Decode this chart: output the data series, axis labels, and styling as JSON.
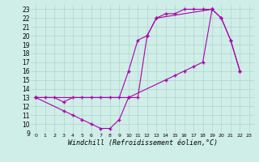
{
  "xlabel": "Windchill (Refroidissement éolien,°C)",
  "bg_color": "#d0eee8",
  "grid_color": "#b0d4cc",
  "line_color": "#aa00aa",
  "xlim": [
    -0.5,
    23.5
  ],
  "ylim": [
    9,
    23.5
  ],
  "xticks": [
    0,
    1,
    2,
    3,
    4,
    5,
    6,
    7,
    8,
    9,
    10,
    11,
    12,
    13,
    14,
    15,
    16,
    17,
    18,
    19,
    20,
    21,
    22,
    23
  ],
  "yticks": [
    9,
    10,
    11,
    12,
    13,
    14,
    15,
    16,
    17,
    18,
    19,
    20,
    21,
    22,
    23
  ],
  "curve1_x": [
    0,
    1,
    2,
    3,
    4,
    5,
    6,
    7,
    8,
    9,
    10,
    11,
    12,
    13,
    14,
    15,
    16,
    17,
    18,
    19
  ],
  "curve1_y": [
    13,
    13,
    13,
    12.5,
    13,
    13,
    13,
    13,
    13,
    13,
    16,
    19.5,
    20,
    22,
    22.5,
    22.5,
    23,
    23,
    23,
    23
  ],
  "curve2_x": [
    0,
    3,
    4,
    5,
    6,
    7,
    8,
    9,
    10,
    14,
    15,
    16,
    17,
    18,
    19,
    20,
    21,
    22
  ],
  "curve2_y": [
    13,
    11.5,
    11,
    10.5,
    10,
    9.5,
    9.5,
    10.5,
    13,
    15,
    15.5,
    16,
    16.5,
    17,
    23,
    22,
    19.5,
    16
  ],
  "curve3_x": [
    0,
    10,
    11,
    12,
    13,
    19,
    20,
    21,
    22
  ],
  "curve3_y": [
    13,
    13,
    13,
    20,
    22,
    23,
    22,
    19.5,
    16
  ],
  "xlabel_fontsize": 6,
  "tick_fontsize": 5.5
}
